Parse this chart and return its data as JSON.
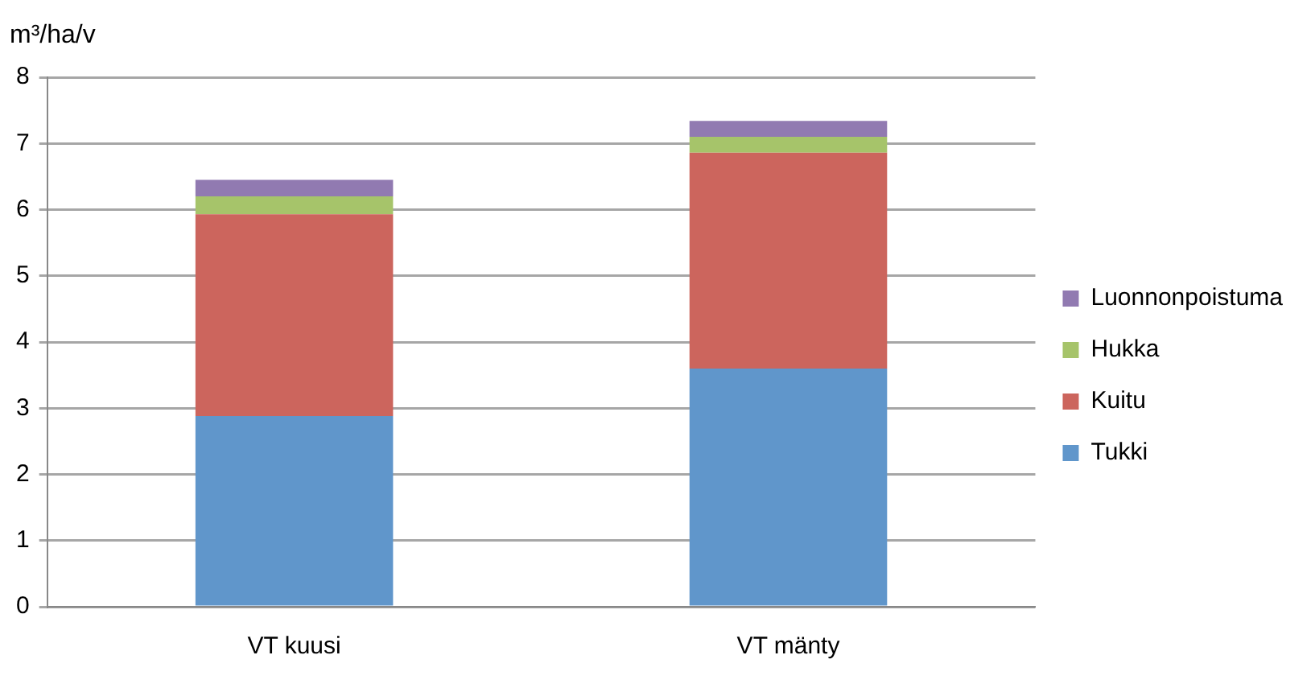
{
  "chart_data": {
    "type": "bar",
    "ylabel": "m³/ha/v",
    "categories": [
      "VT kuusi",
      "VT mänty"
    ],
    "stacked": true,
    "series": [
      {
        "name": "Tukki",
        "color": "#6096cb",
        "values": [
          2.88,
          3.6
        ]
      },
      {
        "name": "Kuitu",
        "color": "#cc655d",
        "values": [
          3.05,
          3.26
        ]
      },
      {
        "name": "Hukka",
        "color": "#a6c46a",
        "values": [
          0.27,
          0.24
        ]
      },
      {
        "name": "Luonnonpoistuma",
        "color": "#917ab1",
        "values": [
          0.25,
          0.24
        ]
      }
    ],
    "ylim": [
      0,
      8
    ],
    "yticks": [
      0,
      1,
      2,
      3,
      4,
      5,
      6,
      7,
      8
    ],
    "grid": "y",
    "legend": "right"
  }
}
